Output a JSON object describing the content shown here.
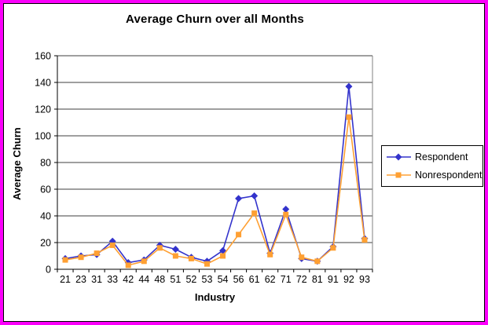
{
  "window": {
    "outer_border_color": "#FB00FB",
    "inner_border_color": "#000000",
    "background_color": "#FFFFFF"
  },
  "chart_data": {
    "type": "line",
    "title": "Average Churn over all Months",
    "xlabel": "Industry",
    "ylabel": "Average Churn",
    "ylim": [
      0,
      160
    ],
    "ytick_step": 20,
    "grid": true,
    "legend_position": "right",
    "categories": [
      "21",
      "23",
      "31",
      "33",
      "42",
      "44",
      "48",
      "51",
      "52",
      "53",
      "54",
      "56",
      "61",
      "62",
      "71",
      "72",
      "81",
      "91",
      "92",
      "93"
    ],
    "series": [
      {
        "name": "Respondent",
        "color": "#3333CC",
        "marker": "diamond",
        "values": [
          8,
          10,
          11,
          21,
          5,
          7,
          18,
          15,
          9,
          6,
          14,
          53,
          55,
          12,
          45,
          8,
          6,
          17,
          137,
          23
        ]
      },
      {
        "name": "Nonrespondent",
        "color": "#FFA033",
        "marker": "square",
        "values": [
          7,
          9,
          12,
          18,
          3,
          6,
          16,
          10,
          8,
          4,
          10,
          26,
          42,
          11,
          41,
          9,
          6,
          16,
          114,
          22
        ]
      }
    ],
    "gridline_color": "#3F3F3F",
    "plot_right_border_color": "#808080"
  }
}
